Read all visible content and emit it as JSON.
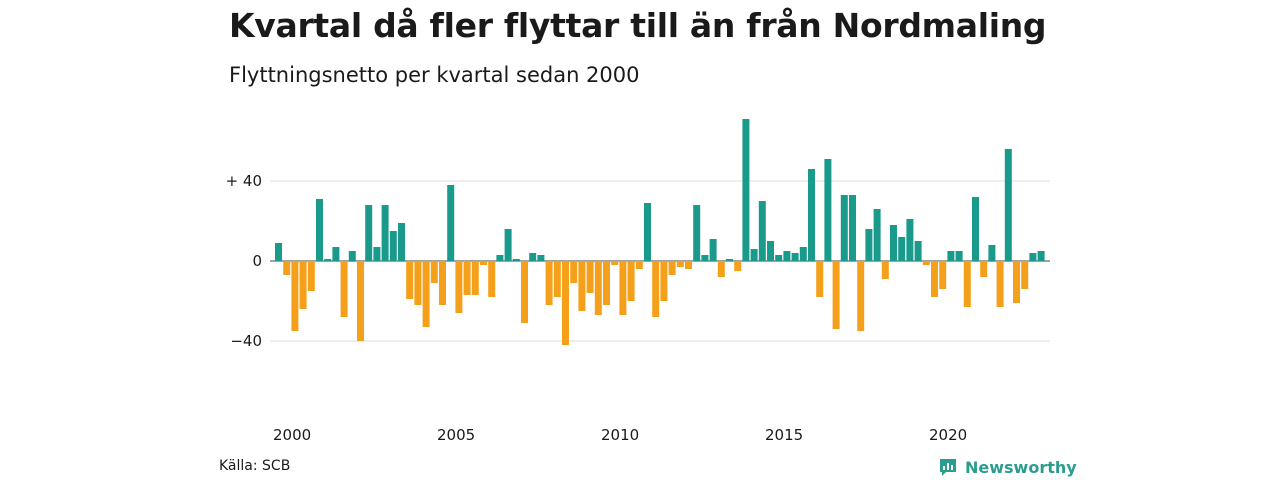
{
  "title": "Kvartal då fler flyttar till än från Nordmaling",
  "subtitle": "Flyttningsnetto per kvartal sedan 2000",
  "source": "Källa: SCB",
  "brand": {
    "name": "Newsworthy",
    "icon": "newsworthy-logo-icon"
  },
  "colors": {
    "positive": "#1a9a8a",
    "negative": "#f5a01b",
    "grid": "#dddddd",
    "brand": "#2a9d8f"
  },
  "chart_data": {
    "type": "bar",
    "title": "Kvartal då fler flyttar till än från Nordmaling",
    "subtitle": "Flyttningsnetto per kvartal sedan 2000",
    "start_year": 2000,
    "start_quarter": 1,
    "ylim": [
      -55,
      75
    ],
    "yticks": [
      {
        "value": 40,
        "label": "+ 40"
      },
      {
        "value": 0,
        "label": "0"
      },
      {
        "value": -40,
        "label": "−40"
      }
    ],
    "xticks": [
      {
        "year": 2000,
        "label": "2000"
      },
      {
        "year": 2005,
        "label": "2005"
      },
      {
        "year": 2010,
        "label": "2010"
      },
      {
        "year": 2015,
        "label": "2015"
      },
      {
        "year": 2020,
        "label": "2020"
      }
    ],
    "grid": true,
    "values": [
      9,
      -7,
      -35,
      -24,
      -15,
      31,
      1,
      7,
      -28,
      5,
      -40,
      28,
      7,
      28,
      15,
      19,
      -19,
      -22,
      -33,
      -11,
      -22,
      38,
      -26,
      -17,
      -17,
      -2,
      -18,
      3,
      16,
      1,
      -31,
      4,
      3,
      -22,
      -18,
      -42,
      -11,
      -25,
      -16,
      -27,
      -22,
      -2,
      -27,
      -20,
      -4,
      29,
      -28,
      -20,
      -7,
      -3,
      -4,
      28,
      3,
      11,
      -8,
      1,
      -5,
      71,
      6,
      30,
      10,
      3,
      5,
      4,
      7,
      46,
      -18,
      51,
      -34,
      33,
      33,
      -35,
      16,
      26,
      -9,
      18,
      12,
      21,
      10,
      -2,
      -18,
      -14,
      5,
      5,
      -23,
      32,
      -8,
      8,
      -23,
      56,
      -21,
      -14,
      4,
      5
    ]
  }
}
